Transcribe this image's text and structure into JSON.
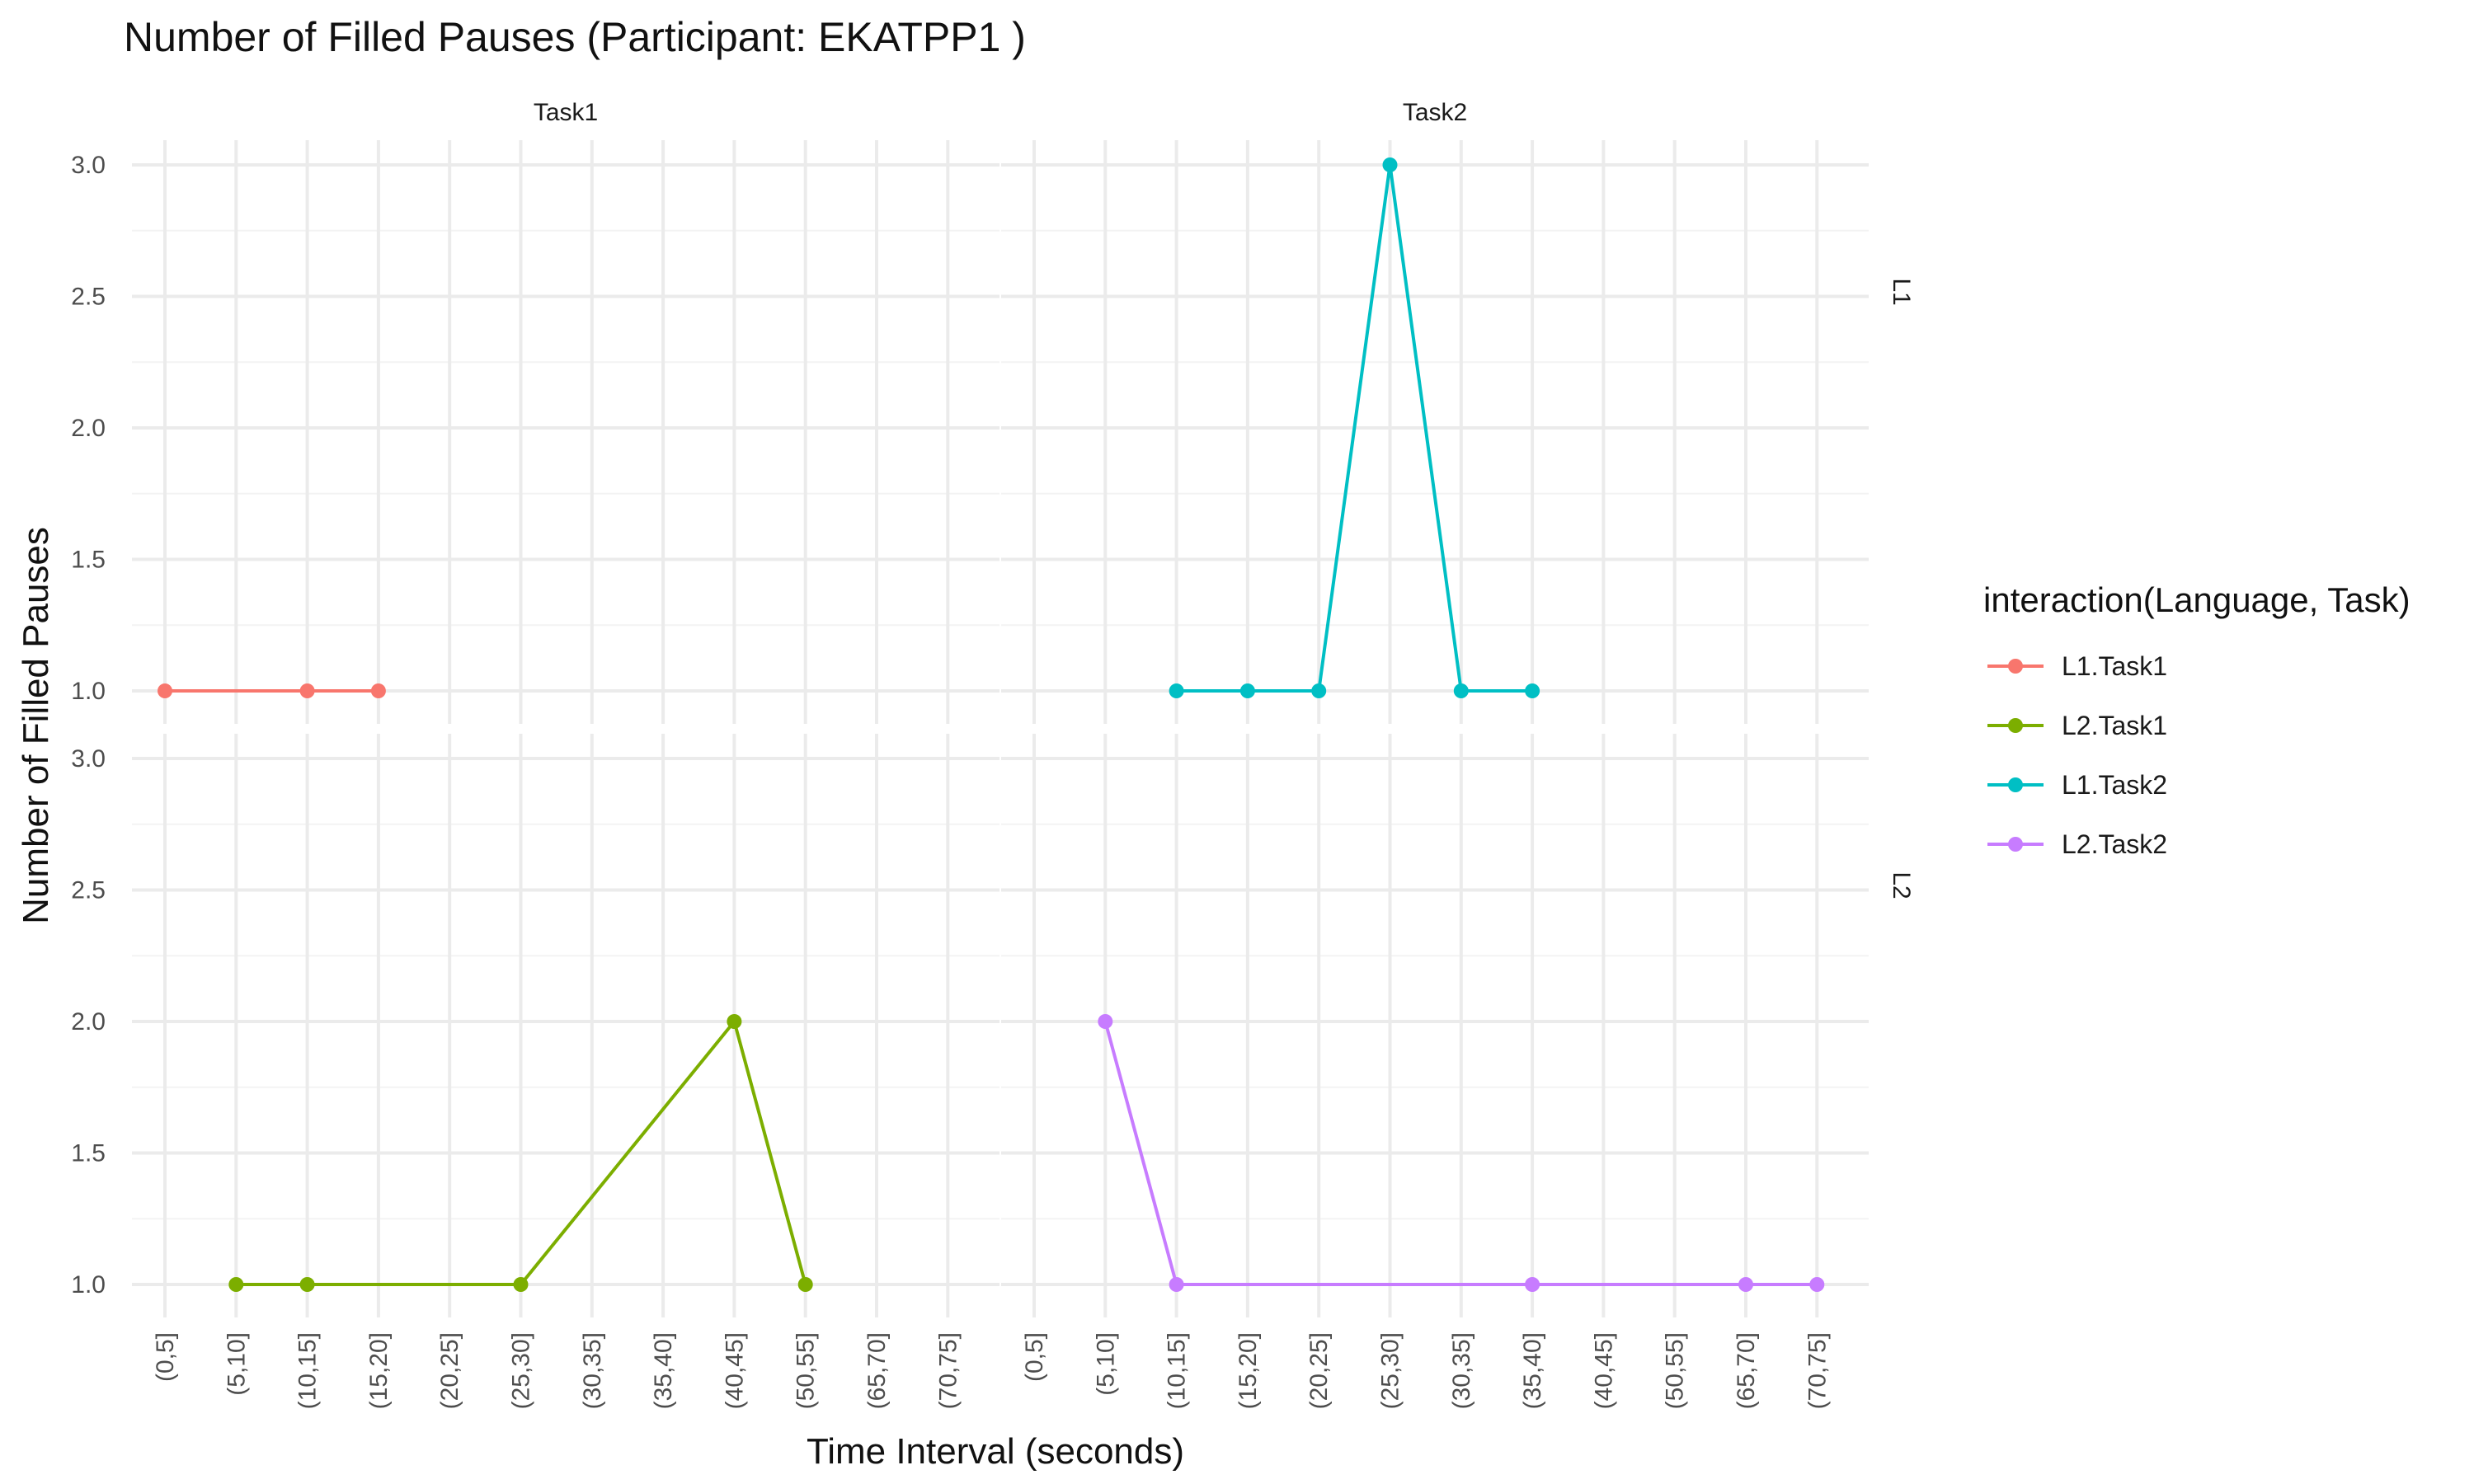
{
  "chart_data": {
    "type": "line",
    "title": "Number of Filled Pauses (Participant: EKATPP1 )",
    "xlabel": "Time Interval (seconds)",
    "ylabel": "Number of Filled Pauses",
    "categories": [
      "(0,5]",
      "(5,10]",
      "(10,15]",
      "(15,20]",
      "(20,25]",
      "(25,30]",
      "(30,35]",
      "(35,40]",
      "(40,45]",
      "(50,55]",
      "(65,70]",
      "(70,75]"
    ],
    "ylim": [
      1.0,
      3.0
    ],
    "yticks": [
      "1.0",
      "1.5",
      "2.0",
      "2.5",
      "3.0"
    ],
    "facet_columns": [
      "Task1",
      "Task2"
    ],
    "facet_rows": [
      "L1",
      "L2"
    ],
    "grid": true,
    "legend": {
      "title": "interaction(Language, Task)",
      "position": "right"
    },
    "series": [
      {
        "name": "L1.Task1",
        "color": "#F8766D",
        "row": "L1",
        "col": "Task1",
        "points": [
          {
            "x": "(0,5]",
            "y": 1
          },
          {
            "x": "(10,15]",
            "y": 1
          },
          {
            "x": "(15,20]",
            "y": 1
          }
        ]
      },
      {
        "name": "L2.Task1",
        "color": "#7CAE00",
        "row": "L2",
        "col": "Task1",
        "points": [
          {
            "x": "(5,10]",
            "y": 1
          },
          {
            "x": "(10,15]",
            "y": 1
          },
          {
            "x": "(25,30]",
            "y": 1
          },
          {
            "x": "(40,45]",
            "y": 2
          },
          {
            "x": "(50,55]",
            "y": 1
          }
        ]
      },
      {
        "name": "L1.Task2",
        "color": "#00BFC4",
        "row": "L1",
        "col": "Task2",
        "points": [
          {
            "x": "(10,15]",
            "y": 1
          },
          {
            "x": "(15,20]",
            "y": 1
          },
          {
            "x": "(20,25]",
            "y": 1
          },
          {
            "x": "(25,30]",
            "y": 3
          },
          {
            "x": "(30,35]",
            "y": 1
          },
          {
            "x": "(35,40]",
            "y": 1
          }
        ]
      },
      {
        "name": "L2.Task2",
        "color": "#C77CFF",
        "row": "L2",
        "col": "Task2",
        "points": [
          {
            "x": "(5,10]",
            "y": 2
          },
          {
            "x": "(10,15]",
            "y": 1
          },
          {
            "x": "(35,40]",
            "y": 1
          },
          {
            "x": "(65,70]",
            "y": 1
          },
          {
            "x": "(70,75]",
            "y": 1
          }
        ]
      }
    ]
  }
}
